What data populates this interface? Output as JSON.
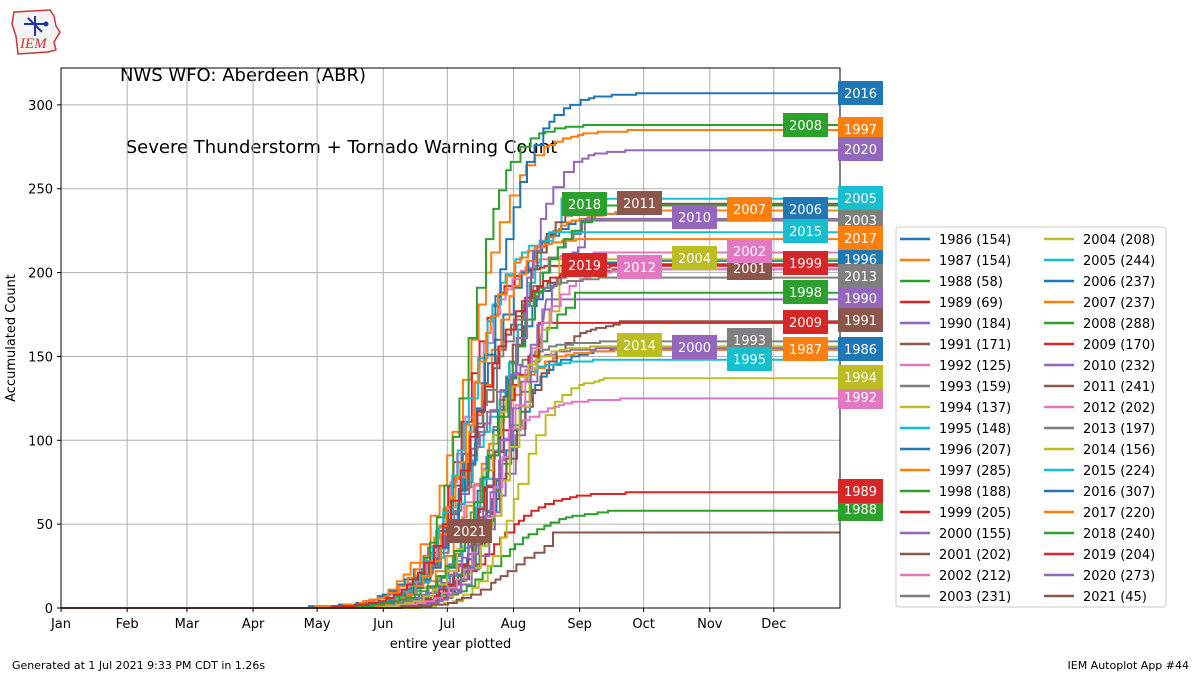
{
  "header": {
    "title_line1": "NWS WFO: Aberdeen (ABR)",
    "title_line2": " Severe Thunderstorm + Tornado Warning Count",
    "logo_text": "IEM"
  },
  "footer": {
    "generated": "Generated at 1 Jul 2021 9:33 PM CDT in 1.26s",
    "app": "IEM Autoplot App #44"
  },
  "chart_data": {
    "type": "line",
    "title": "NWS WFO: Aberdeen (ABR) Severe Thunderstorm + Tornado Warning Count",
    "xlabel": "entire year plotted",
    "ylabel": "Accumulated Count",
    "x_ticks": [
      "Jan",
      "Feb",
      "Mar",
      "Apr",
      "May",
      "Jun",
      "Jul",
      "Aug",
      "Sep",
      "Oct",
      "Nov",
      "Dec"
    ],
    "y_ticks": [
      0,
      50,
      100,
      150,
      200,
      250,
      300
    ],
    "ylim": [
      0,
      322
    ],
    "grid": true,
    "legend_position": "right",
    "series": [
      {
        "year": "1986",
        "label": "1986 (154)",
        "total": 154,
        "color": "#1f77b4"
      },
      {
        "year": "1987",
        "label": "1987 (154)",
        "total": 154,
        "color": "#ff7f0e"
      },
      {
        "year": "1988",
        "label": "1988 (58)",
        "total": 58,
        "color": "#2ca02c"
      },
      {
        "year": "1989",
        "label": "1989 (69)",
        "total": 69,
        "color": "#d62728"
      },
      {
        "year": "1990",
        "label": "1990 (184)",
        "total": 184,
        "color": "#9467bd"
      },
      {
        "year": "1991",
        "label": "1991 (171)",
        "total": 171,
        "color": "#8c564b"
      },
      {
        "year": "1992",
        "label": "1992 (125)",
        "total": 125,
        "color": "#e377c2"
      },
      {
        "year": "1993",
        "label": "1993 (159)",
        "total": 159,
        "color": "#7f7f7f"
      },
      {
        "year": "1994",
        "label": "1994 (137)",
        "total": 137,
        "color": "#bcbd22"
      },
      {
        "year": "1995",
        "label": "1995 (148)",
        "total": 148,
        "color": "#17becf"
      },
      {
        "year": "1996",
        "label": "1996 (207)",
        "total": 207,
        "color": "#1f77b4"
      },
      {
        "year": "1997",
        "label": "1997 (285)",
        "total": 285,
        "color": "#ff7f0e"
      },
      {
        "year": "1998",
        "label": "1998 (188)",
        "total": 188,
        "color": "#2ca02c"
      },
      {
        "year": "1999",
        "label": "1999 (205)",
        "total": 205,
        "color": "#d62728"
      },
      {
        "year": "2000",
        "label": "2000 (155)",
        "total": 155,
        "color": "#9467bd"
      },
      {
        "year": "2001",
        "label": "2001 (202)",
        "total": 202,
        "color": "#8c564b"
      },
      {
        "year": "2002",
        "label": "2002 (212)",
        "total": 212,
        "color": "#e377c2"
      },
      {
        "year": "2003",
        "label": "2003 (231)",
        "total": 231,
        "color": "#7f7f7f"
      },
      {
        "year": "2004",
        "label": "2004 (208)",
        "total": 208,
        "color": "#bcbd22"
      },
      {
        "year": "2005",
        "label": "2005 (244)",
        "total": 244,
        "color": "#17becf"
      },
      {
        "year": "2006",
        "label": "2006 (237)",
        "total": 237,
        "color": "#1f77b4"
      },
      {
        "year": "2007",
        "label": "2007 (237)",
        "total": 237,
        "color": "#ff7f0e"
      },
      {
        "year": "2008",
        "label": "2008 (288)",
        "total": 288,
        "color": "#2ca02c"
      },
      {
        "year": "2009",
        "label": "2009 (170)",
        "total": 170,
        "color": "#d62728"
      },
      {
        "year": "2010",
        "label": "2010 (232)",
        "total": 232,
        "color": "#9467bd"
      },
      {
        "year": "2011",
        "label": "2011 (241)",
        "total": 241,
        "color": "#8c564b"
      },
      {
        "year": "2012",
        "label": "2012 (202)",
        "total": 202,
        "color": "#e377c2"
      },
      {
        "year": "2013",
        "label": "2013 (197)",
        "total": 197,
        "color": "#7f7f7f"
      },
      {
        "year": "2014",
        "label": "2014 (156)",
        "total": 156,
        "color": "#bcbd22"
      },
      {
        "year": "2015",
        "label": "2015 (224)",
        "total": 224,
        "color": "#17becf"
      },
      {
        "year": "2016",
        "label": "2016 (307)",
        "total": 307,
        "color": "#1f77b4"
      },
      {
        "year": "2017",
        "label": "2017 (220)",
        "total": 220,
        "color": "#ff7f0e"
      },
      {
        "year": "2018",
        "label": "2018 (240)",
        "total": 240,
        "color": "#2ca02c"
      },
      {
        "year": "2019",
        "label": "2019 (204)",
        "total": 204,
        "color": "#d62728"
      },
      {
        "year": "2020",
        "label": "2020 (273)",
        "total": 273,
        "color": "#9467bd"
      },
      {
        "year": "2021",
        "label": "2021 (45)",
        "total": 45,
        "color": "#8c564b"
      }
    ]
  }
}
